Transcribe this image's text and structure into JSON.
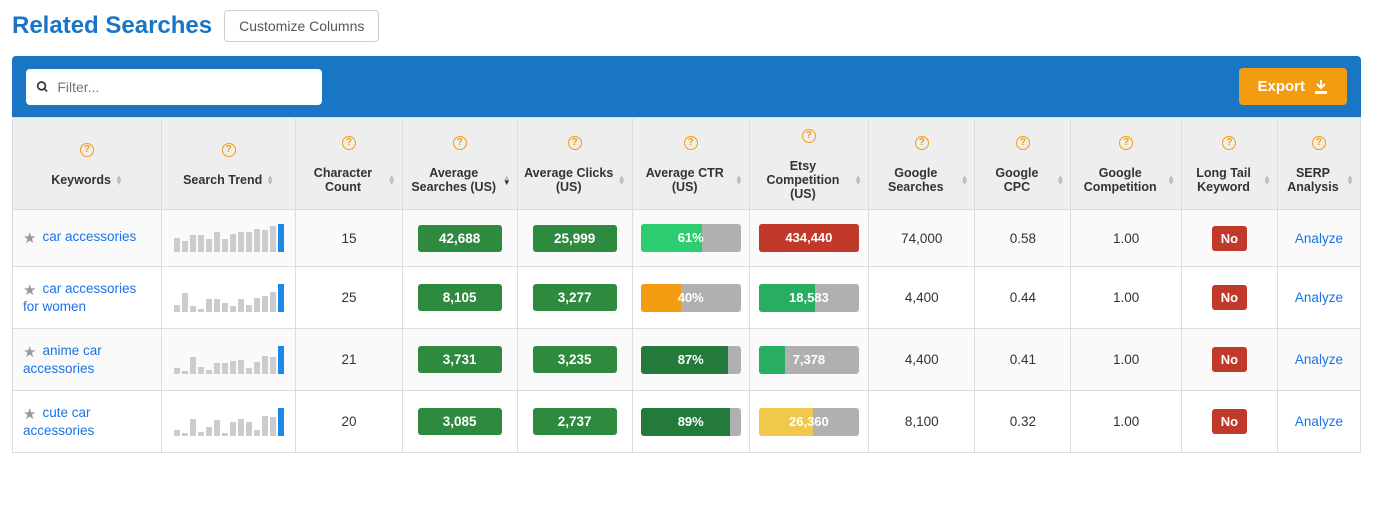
{
  "title": "Related Searches",
  "customize_label": "Customize Columns",
  "filter_placeholder": "Filter...",
  "export_label": "Export",
  "colors": {
    "accent_blue": "#1976c5",
    "orange": "#f39c12",
    "pill_green": "#2d8a3e",
    "bar_bright_green": "#2ecc71",
    "bar_orange": "#f39c12",
    "bar_dark_green": "#237a3b",
    "bar_red": "#c0392b",
    "bar_teal": "#27ae60",
    "bar_yellow": "#f1c84c",
    "bar_gray": "#b0b0b0",
    "badge_red": "#c0392b"
  },
  "columns": [
    {
      "key": "keywords",
      "label": "Keywords",
      "width": 140
    },
    {
      "key": "trend",
      "label": "Search Trend",
      "width": 126
    },
    {
      "key": "charcount",
      "label": "Character Count",
      "width": 100
    },
    {
      "key": "searches",
      "label": "Average Searches (US)",
      "width": 108,
      "sorted": "desc"
    },
    {
      "key": "clicks",
      "label": "Average Clicks (US)",
      "width": 108
    },
    {
      "key": "ctr",
      "label": "Average CTR (US)",
      "width": 110
    },
    {
      "key": "etsy",
      "label": "Etsy Competition (US)",
      "width": 112
    },
    {
      "key": "gsearches",
      "label": "Google Searches",
      "width": 100
    },
    {
      "key": "gcpc",
      "label": "Google CPC",
      "width": 90
    },
    {
      "key": "gcomp",
      "label": "Google Competition",
      "width": 104
    },
    {
      "key": "longtail",
      "label": "Long Tail Keyword",
      "width": 90
    },
    {
      "key": "serp",
      "label": "SERP Analysis",
      "width": 78
    }
  ],
  "rows": [
    {
      "keyword": "car accessories",
      "charcount": "15",
      "trend": [
        50,
        38,
        62,
        60,
        46,
        70,
        48,
        64,
        72,
        72,
        82,
        80,
        92,
        100
      ],
      "searches": {
        "label": "42,688",
        "color": "#2d8a3e"
      },
      "clicks": {
        "label": "25,999",
        "color": "#2d8a3e"
      },
      "ctr": {
        "label": "61%",
        "pct": 61,
        "fill": "#2ecc71"
      },
      "etsy": {
        "label": "434,440",
        "pct": 100,
        "fill": "#c0392b"
      },
      "gsearches": "74,000",
      "gcpc": "0.58",
      "gcomp": "1.00",
      "longtail": "No",
      "serp": "Analyze"
    },
    {
      "keyword": "car accessories for women",
      "charcount": "25",
      "trend": [
        24,
        66,
        18,
        10,
        44,
        46,
        30,
        18,
        46,
        22,
        50,
        54,
        70,
        100
      ],
      "searches": {
        "label": "8,105",
        "color": "#2d8a3e"
      },
      "clicks": {
        "label": "3,277",
        "color": "#2d8a3e"
      },
      "ctr": {
        "label": "40%",
        "pct": 40,
        "fill": "#f39c12"
      },
      "etsy": {
        "label": "18,583",
        "pct": 56,
        "fill": "#27ae60"
      },
      "gsearches": "4,400",
      "gcpc": "0.44",
      "gcomp": "1.00",
      "longtail": "No",
      "serp": "Analyze"
    },
    {
      "keyword": "anime car accessories",
      "charcount": "21",
      "trend": [
        20,
        10,
        58,
        24,
        14,
        38,
        36,
        44,
        48,
        18,
        40,
        62,
        60,
        100
      ],
      "searches": {
        "label": "3,731",
        "color": "#2d8a3e"
      },
      "clicks": {
        "label": "3,235",
        "color": "#2d8a3e"
      },
      "ctr": {
        "label": "87%",
        "pct": 87,
        "fill": "#237a3b"
      },
      "etsy": {
        "label": "7,378",
        "pct": 26,
        "fill": "#27ae60"
      },
      "gsearches": "4,400",
      "gcpc": "0.41",
      "gcomp": "1.00",
      "longtail": "No",
      "serp": "Analyze"
    },
    {
      "keyword": "cute car accessories",
      "charcount": "20",
      "trend": [
        20,
        10,
        60,
        14,
        32,
        56,
        8,
        48,
        60,
        50,
        18,
        70,
        66,
        100
      ],
      "searches": {
        "label": "3,085",
        "color": "#2d8a3e"
      },
      "clicks": {
        "label": "2,737",
        "color": "#2d8a3e"
      },
      "ctr": {
        "label": "89%",
        "pct": 89,
        "fill": "#237a3b"
      },
      "etsy": {
        "label": "26,360",
        "pct": 54,
        "fill": "#f1c84c"
      },
      "gsearches": "8,100",
      "gcpc": "0.32",
      "gcomp": "1.00",
      "longtail": "No",
      "serp": "Analyze"
    }
  ]
}
